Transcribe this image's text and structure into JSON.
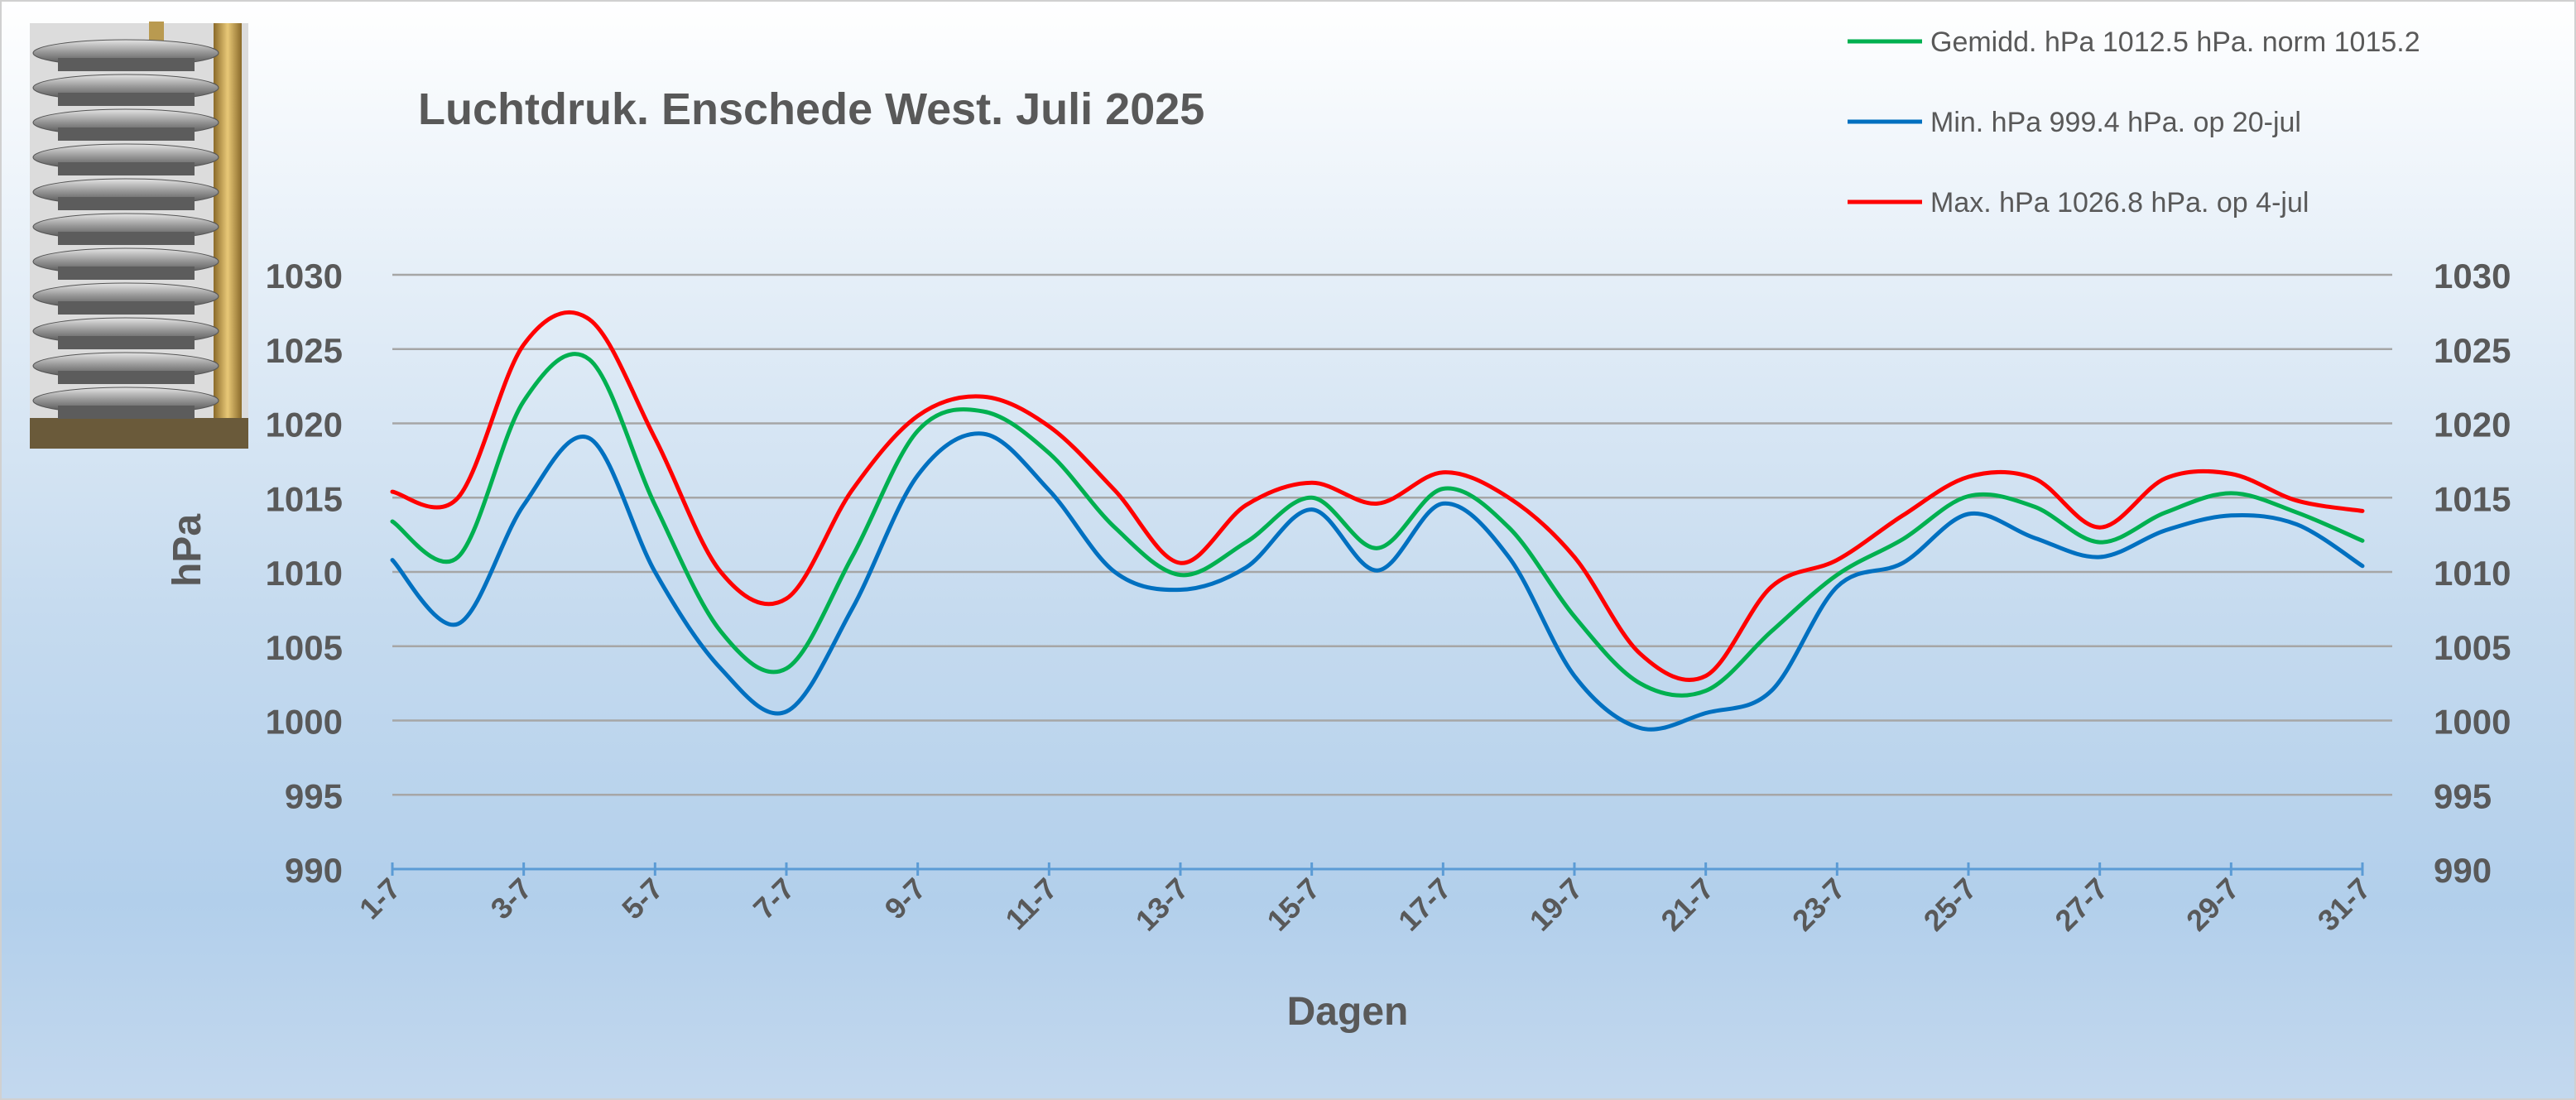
{
  "chart_data": {
    "type": "line",
    "title": "Luchtdruk. Enschede West. Juli 2025",
    "xlabel": "Dagen",
    "ylabel": "hPa",
    "ylim": [
      990,
      1030
    ],
    "yticks": [
      990,
      995,
      1000,
      1005,
      1010,
      1015,
      1020,
      1025,
      1030
    ],
    "ytick_labels": [
      "990",
      "995",
      "1000",
      "1005",
      "1010",
      "1015",
      "1020",
      "1025",
      "1030"
    ],
    "x": [
      1,
      2,
      3,
      4,
      5,
      6,
      7,
      8,
      9,
      10,
      11,
      12,
      13,
      14,
      15,
      16,
      17,
      18,
      19,
      20,
      21,
      22,
      23,
      24,
      25,
      26,
      27,
      28,
      29,
      30,
      31
    ],
    "xtick_days": [
      1,
      3,
      5,
      7,
      9,
      11,
      13,
      15,
      17,
      19,
      21,
      23,
      25,
      27,
      29,
      31
    ],
    "xtick_labels": [
      "1-7",
      "3-7",
      "5-7",
      "7-7",
      "9-7",
      "11-7",
      "13-7",
      "15-7",
      "17-7",
      "19-7",
      "21-7",
      "23-7",
      "25-7",
      "27-7",
      "29-7",
      "31-7"
    ],
    "grid": true,
    "legend_position": "top-right",
    "secondary_y_axis": true,
    "series": [
      {
        "name": "Gemidd. hPa 1012.5 hPa.  norm 1015.2",
        "color": "#00B050",
        "values": [
          1013.4,
          1011.0,
          1021.5,
          1024.3,
          1014.5,
          1006.0,
          1003.5,
          1011.0,
          1019.5,
          1020.8,
          1018.0,
          1013.0,
          1009.8,
          1012.0,
          1015.0,
          1011.6,
          1015.6,
          1013.0,
          1007.0,
          1002.5,
          1002.0,
          1006.0,
          1009.8,
          1012.2,
          1015.1,
          1014.4,
          1012.0,
          1014.0,
          1015.3,
          1014.0,
          1012.1
        ]
      },
      {
        "name": "Min. hPa 999.4 hPa.  op 20-jul",
        "color": "#0070C0",
        "values": [
          1010.8,
          1006.5,
          1014.5,
          1019.0,
          1010.0,
          1003.5,
          1000.6,
          1007.5,
          1016.5,
          1019.3,
          1015.5,
          1010.0,
          1008.8,
          1010.3,
          1014.2,
          1010.1,
          1014.6,
          1011.0,
          1003.0,
          999.5,
          1000.5,
          1002.0,
          1009.0,
          1010.6,
          1013.9,
          1012.3,
          1011.0,
          1012.8,
          1013.8,
          1013.2,
          1010.4
        ]
      },
      {
        "name": "Max. hPa 1026.8 hPa.  op 4-jul",
        "color": "#FF0000",
        "values": [
          1015.4,
          1015.0,
          1025.3,
          1027.0,
          1019.0,
          1010.0,
          1008.2,
          1015.5,
          1020.5,
          1021.8,
          1019.8,
          1015.5,
          1010.6,
          1014.5,
          1016.0,
          1014.6,
          1016.7,
          1015.0,
          1011.0,
          1004.5,
          1003.0,
          1009.0,
          1010.8,
          1013.8,
          1016.4,
          1016.3,
          1013.0,
          1016.3,
          1016.6,
          1014.8,
          1014.1
        ]
      }
    ]
  }
}
